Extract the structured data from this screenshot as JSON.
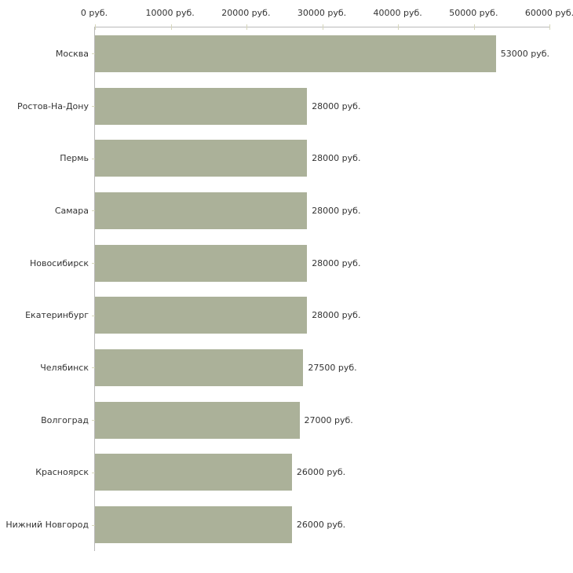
{
  "chart_data": {
    "type": "bar",
    "orientation": "horizontal",
    "title": "",
    "xlabel": "",
    "ylabel": "",
    "categories": [
      "Москва",
      "Ростов-На-Дону",
      "Пермь",
      "Самара",
      "Новосибирск",
      "Екатеринбург",
      "Челябинск",
      "Волгоград",
      "Красноярск",
      "Нижний Новгород"
    ],
    "values": [
      53000,
      28000,
      28000,
      28000,
      28000,
      28000,
      27500,
      27000,
      26000,
      26000
    ],
    "value_labels": [
      "53000 руб.",
      "28000 руб.",
      "28000 руб.",
      "28000 руб.",
      "28000 руб.",
      "28000 руб.",
      "27500 руб.",
      "27000 руб.",
      "26000 руб.",
      "26000 руб."
    ],
    "x_tick_labels": [
      "0 руб.",
      "10000 руб.",
      "20000 руб.",
      "30000 руб.",
      "40000 руб.",
      "50000 руб.",
      "60000 руб."
    ],
    "xlim": [
      0,
      60000
    ],
    "x_tick_step": 10000,
    "grid": false,
    "legend": false,
    "colors": {
      "bar": "#abb199",
      "axis": "#b9b9b9",
      "tick": "#d6d6bb",
      "text": "#333333",
      "background": "#ffffff"
    }
  }
}
